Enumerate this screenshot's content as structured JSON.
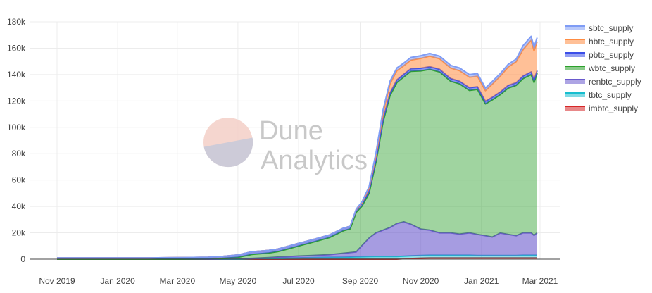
{
  "chart_data": {
    "type": "area",
    "stacked": true,
    "ylim": [
      0,
      180000
    ],
    "yticks": [
      {
        "value": 0,
        "label": "0"
      },
      {
        "value": 20000,
        "label": "20k"
      },
      {
        "value": 40000,
        "label": "40k"
      },
      {
        "value": 60000,
        "label": "60k"
      },
      {
        "value": 80000,
        "label": "80k"
      },
      {
        "value": 100000,
        "label": "100k"
      },
      {
        "value": 120000,
        "label": "120k"
      },
      {
        "value": 140000,
        "label": "140k"
      },
      {
        "value": 160000,
        "label": "160k"
      },
      {
        "value": 180000,
        "label": "180k"
      }
    ],
    "xrange": [
      "2019-11-01",
      "2021-03-01"
    ],
    "xticks": [
      {
        "date": "2019-11-01",
        "label": "Nov 2019"
      },
      {
        "date": "2020-01-01",
        "label": "Jan 2020"
      },
      {
        "date": "2020-03-01",
        "label": "Mar 2020"
      },
      {
        "date": "2020-05-01",
        "label": "May 2020"
      },
      {
        "date": "2020-07-01",
        "label": "Jul 2020"
      },
      {
        "date": "2020-09-01",
        "label": "Sep 2020"
      },
      {
        "date": "2020-11-01",
        "label": "Nov 2020"
      },
      {
        "date": "2021-01-01",
        "label": "Jan 2021"
      },
      {
        "date": "2021-03-01",
        "label": "Mar 2021"
      }
    ],
    "grid": true,
    "legend_position": "top-right",
    "dates": [
      "2019-11-01",
      "2019-12-01",
      "2020-01-01",
      "2020-02-01",
      "2020-03-01",
      "2020-04-01",
      "2020-04-15",
      "2020-05-01",
      "2020-05-15",
      "2020-06-01",
      "2020-06-10",
      "2020-06-20",
      "2020-07-01",
      "2020-07-15",
      "2020-08-01",
      "2020-08-15",
      "2020-08-22",
      "2020-08-28",
      "2020-09-03",
      "2020-09-10",
      "2020-09-17",
      "2020-09-24",
      "2020-10-01",
      "2020-10-08",
      "2020-10-15",
      "2020-10-22",
      "2020-11-01",
      "2020-11-10",
      "2020-11-20",
      "2020-12-01",
      "2020-12-10",
      "2020-12-20",
      "2020-12-28",
      "2021-01-05",
      "2021-01-12",
      "2021-01-20",
      "2021-01-28",
      "2021-02-05",
      "2021-02-12",
      "2021-02-20",
      "2021-02-23",
      "2021-02-26"
    ],
    "series": [
      {
        "name": "imbtc_supply",
        "color": "#d62728",
        "values": [
          0,
          0,
          0,
          0,
          0,
          0,
          0,
          0,
          0,
          0,
          0,
          0,
          0,
          0,
          0,
          0,
          0,
          0,
          0,
          0,
          0,
          0,
          0,
          0,
          300,
          500,
          800,
          1000,
          1000,
          1000,
          1000,
          1000,
          1000,
          1000,
          1000,
          1000,
          1000,
          1000,
          1000,
          1000,
          1000,
          1000
        ]
      },
      {
        "name": "tbtc_supply",
        "color": "#17becf",
        "values": [
          0,
          0,
          0,
          0,
          0,
          0,
          0,
          0,
          200,
          500,
          700,
          900,
          1000,
          1200,
          1400,
          1500,
          1600,
          1700,
          1800,
          1900,
          2000,
          2000,
          2000,
          2000,
          2000,
          2000,
          2000,
          2000,
          2000,
          2000,
          2000,
          2000,
          1800,
          1800,
          1800,
          1800,
          1800,
          1800,
          2000,
          2000,
          2000,
          2000
        ]
      },
      {
        "name": "renbtc_supply",
        "color": "#6a5acd",
        "values": [
          0,
          0,
          0,
          0,
          0,
          0,
          100,
          200,
          400,
          700,
          900,
          1000,
          1400,
          1600,
          2000,
          3000,
          3400,
          3800,
          8600,
          14100,
          18000,
          20000,
          22000,
          25000,
          26000,
          24000,
          20000,
          19000,
          17000,
          17000,
          16000,
          17000,
          16000,
          15000,
          14000,
          17000,
          16000,
          15000,
          17000,
          17000,
          15000,
          17000
        ]
      },
      {
        "name": "wbtc_supply",
        "color": "#2ca02c",
        "values": [
          0,
          0,
          0,
          0,
          0,
          200,
          500,
          1200,
          3000,
          3500,
          4100,
          5800,
          7600,
          10000,
          13000,
          17000,
          18000,
          30000,
          30000,
          34000,
          54000,
          82000,
          100000,
          107000,
          110000,
          116000,
          120000,
          122000,
          122000,
          115000,
          114000,
          108000,
          110000,
          100000,
          104000,
          105000,
          111000,
          114000,
          117000,
          120000,
          116000,
          121000
        ]
      },
      {
        "name": "pbtc_supply",
        "color": "#3b4ee8",
        "values": [
          1000,
          1000,
          1000,
          1000,
          1200,
          1300,
          1500,
          1800,
          2000,
          2000,
          2000,
          2000,
          2000,
          2000,
          2000,
          2000,
          2000,
          2000,
          2000,
          2000,
          2000,
          2000,
          2000,
          2000,
          2000,
          2000,
          2000,
          2000,
          2000,
          2000,
          2000,
          2000,
          2000,
          2000,
          2000,
          2000,
          2000,
          2000,
          2000,
          2000,
          2000,
          2000
        ]
      },
      {
        "name": "hbtc_supply",
        "color": "#ff8c42",
        "values": [
          0,
          0,
          0,
          0,
          0,
          0,
          0,
          0,
          0,
          0,
          0,
          0,
          0,
          0,
          0,
          0,
          0,
          200,
          500,
          2000,
          3000,
          5000,
          7000,
          7000,
          6500,
          6500,
          7500,
          8000,
          8000,
          8000,
          8000,
          8000,
          8000,
          8000,
          10000,
          12000,
          14000,
          16000,
          20000,
          24000,
          22000,
          22000
        ]
      },
      {
        "name": "sbtc_supply",
        "color": "#7f9cf5",
        "values": [
          0,
          0,
          0,
          0,
          0,
          0,
          0,
          0,
          0,
          0,
          0,
          0,
          0,
          0,
          0,
          0,
          0,
          300,
          800,
          1000,
          2000,
          2000,
          2000,
          2000,
          2000,
          2000,
          2000,
          2000,
          2000,
          2000,
          2000,
          2000,
          2000,
          2000,
          2000,
          2000,
          2000,
          2000,
          3000,
          3000,
          3000,
          3000
        ]
      }
    ],
    "legend_order": [
      "sbtc_supply",
      "hbtc_supply",
      "pbtc_supply",
      "wbtc_supply",
      "renbtc_supply",
      "tbtc_supply",
      "imbtc_supply"
    ]
  },
  "watermark": {
    "line1": "Dune",
    "line2": "Analytics"
  }
}
